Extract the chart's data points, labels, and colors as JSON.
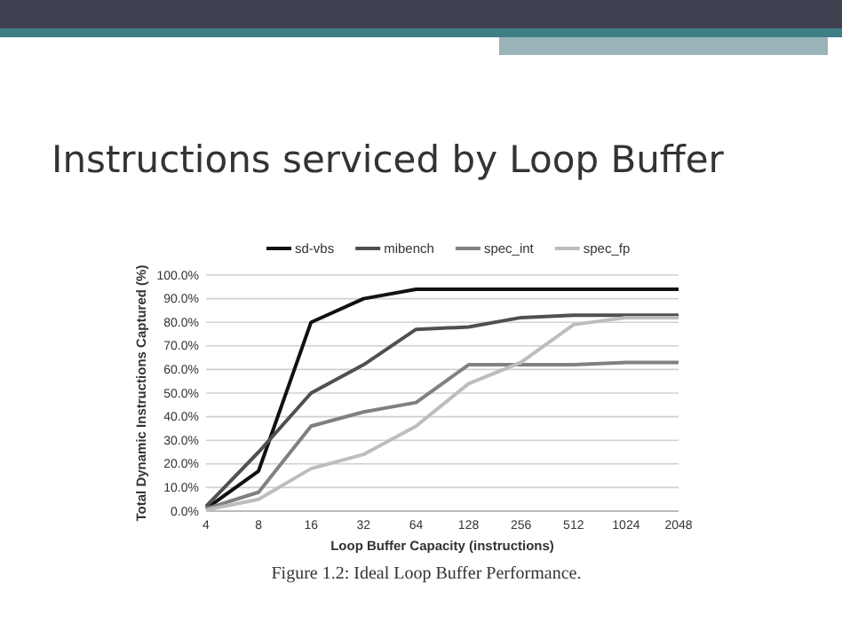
{
  "chart_data": {
    "type": "line",
    "title": "Instructions serviced by Loop Buffer",
    "xlabel": "Loop Buffer Capacity (instructions)",
    "ylabel": "Total Dynamic Instructions Captured (%)",
    "annotations": [
      "Figure 1.2: Ideal Loop Buffer Performance."
    ],
    "categories": [
      "4",
      "8",
      "16",
      "32",
      "64",
      "128",
      "256",
      "512",
      "1024",
      "2048"
    ],
    "series": [
      {
        "name": "sd-vbs",
        "color": "#111111",
        "values": [
          1,
          17,
          80,
          90,
          94,
          94,
          94,
          94,
          94,
          94
        ]
      },
      {
        "name": "mibench",
        "color": "#505050",
        "values": [
          2,
          25,
          50,
          62,
          77,
          78,
          82,
          83,
          83,
          83
        ]
      },
      {
        "name": "spec_int",
        "color": "#808080",
        "values": [
          1,
          8,
          36,
          42,
          46,
          62,
          62,
          62,
          63,
          63
        ]
      },
      {
        "name": "spec_fp",
        "color": "#bdbdbd",
        "values": [
          0.5,
          5,
          18,
          24,
          36,
          54,
          63,
          79,
          82,
          82
        ]
      }
    ],
    "ylim": [
      0,
      100
    ],
    "yticks": [
      {
        "value": 0,
        "label": "0.0%"
      },
      {
        "value": 10,
        "label": "10.0%"
      },
      {
        "value": 20,
        "label": "20.0%"
      },
      {
        "value": 30,
        "label": "30.0%"
      },
      {
        "value": 40,
        "label": "40.0%"
      },
      {
        "value": 50,
        "label": "50.0%"
      },
      {
        "value": 60,
        "label": "60.0%"
      },
      {
        "value": 70,
        "label": "70.0%"
      },
      {
        "value": 80,
        "label": "80.0%"
      },
      {
        "value": 90,
        "label": "90.0%"
      },
      {
        "value": 100,
        "label": "100.0%"
      }
    ],
    "grid": "y",
    "legend": "top",
    "marker": "none",
    "line_style": "solid"
  }
}
